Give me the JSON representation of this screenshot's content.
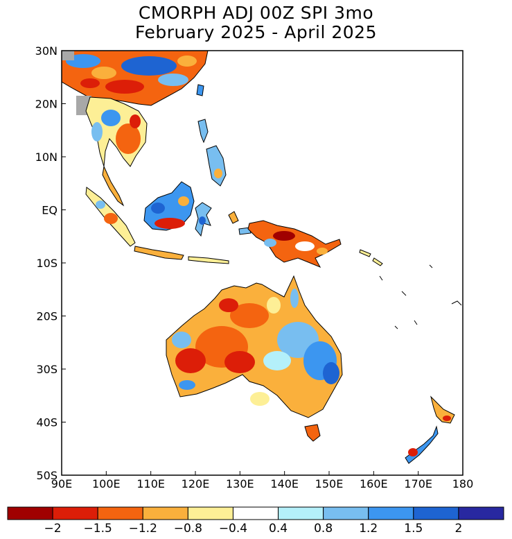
{
  "title": {
    "line1": "CMORPH ADJ 00Z SPI 3mo",
    "line2": "February 2025 - April 2025"
  },
  "map": {
    "region": "Southeast Asia, Maritime Continent and Australia",
    "lon_range": [
      90,
      180
    ],
    "lat_range": [
      -50,
      30
    ],
    "lat_ticks": [
      {
        "value": 30,
        "label": "30N"
      },
      {
        "value": 20,
        "label": "20N"
      },
      {
        "value": 10,
        "label": "10N"
      },
      {
        "value": 0,
        "label": "EQ"
      },
      {
        "value": -10,
        "label": "10S"
      },
      {
        "value": -20,
        "label": "20S"
      },
      {
        "value": -30,
        "label": "30S"
      },
      {
        "value": -40,
        "label": "40S"
      },
      {
        "value": -50,
        "label": "50S"
      }
    ],
    "lon_ticks": [
      {
        "value": 90,
        "label": "90E"
      },
      {
        "value": 100,
        "label": "100E"
      },
      {
        "value": 110,
        "label": "110E"
      },
      {
        "value": 120,
        "label": "120E"
      },
      {
        "value": 130,
        "label": "130E"
      },
      {
        "value": 140,
        "label": "140E"
      },
      {
        "value": 150,
        "label": "150E"
      },
      {
        "value": 160,
        "label": "160E"
      },
      {
        "value": 170,
        "label": "170E"
      },
      {
        "value": 180,
        "label": "180"
      }
    ],
    "missing_color": "#a8a8a8"
  },
  "colorbar": {
    "colors": [
      "#a00000",
      "#dc1e08",
      "#f46410",
      "#fab03c",
      "#fdef96",
      "#ffffff",
      "#b4f0fa",
      "#78bef0",
      "#3c96f0",
      "#1e64d2",
      "#2828a0"
    ],
    "labels": [
      "-2",
      "-1.5",
      "-1.2",
      "-0.8",
      "-0.4",
      "0.4",
      "0.8",
      "1.2",
      "1.5",
      "2"
    ]
  }
}
